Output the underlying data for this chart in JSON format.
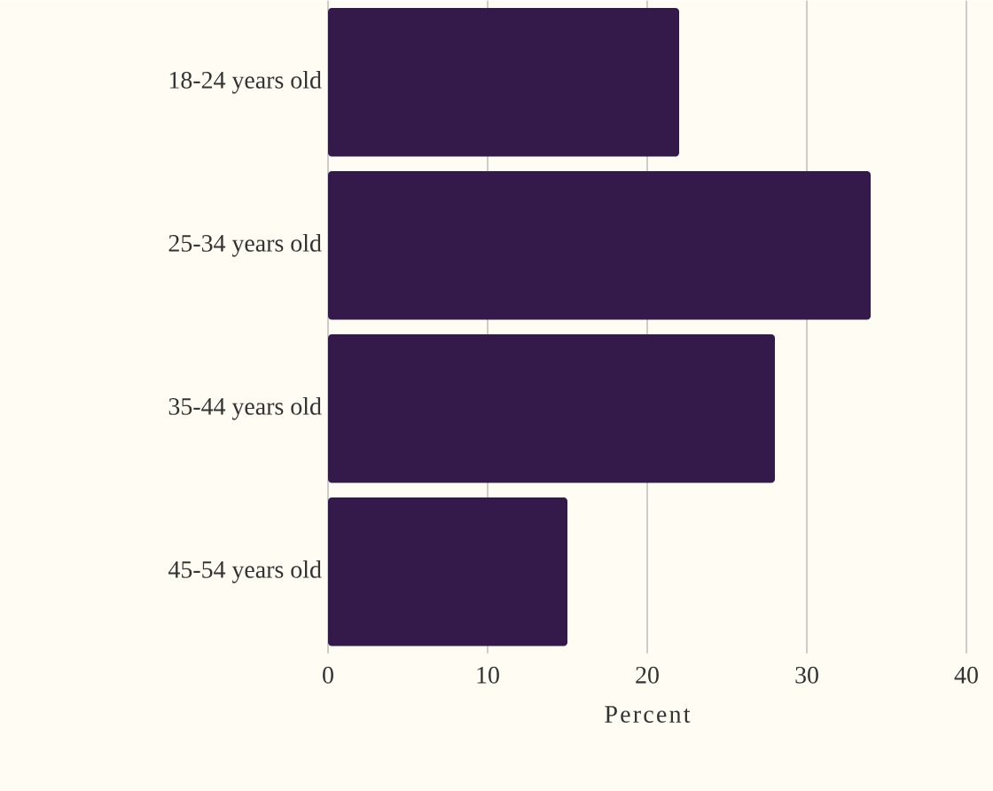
{
  "chart_data": {
    "type": "bar",
    "orientation": "horizontal",
    "categories": [
      "18-24 years old",
      "25-34 years old",
      "35-44 years old",
      "45-54 years old"
    ],
    "values": [
      22,
      34,
      28,
      15
    ],
    "color": "#341a4a",
    "xlim": [
      0,
      40
    ],
    "xticks": [
      0,
      10,
      20,
      30,
      40
    ],
    "xlabel": "Percent",
    "grid": "x"
  }
}
